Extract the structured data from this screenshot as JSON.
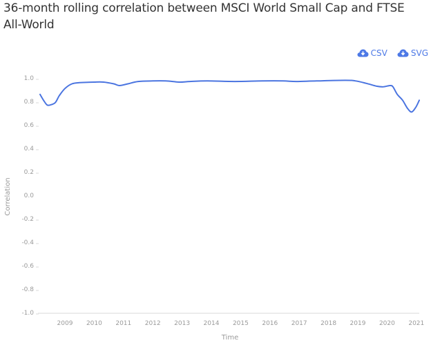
{
  "chart_data": {
    "type": "line",
    "title": "36-month rolling correlation between MSCI World Small Cap and FTSE All-World",
    "xlabel": "Time",
    "ylabel": "Correlation",
    "ylim": [
      -1.0,
      1.0
    ],
    "xlim": [
      2008.15,
      2021.1
    ],
    "grid": false,
    "legend": "none",
    "y_ticks": [
      "1.0",
      "0.8",
      "0.6",
      "0.4",
      "0.2",
      "0.0",
      "-0.2",
      "-0.4",
      "-0.6",
      "-0.8",
      "-1.0"
    ],
    "y_tick_values": [
      1.0,
      0.8,
      0.6,
      0.4,
      0.2,
      0.0,
      -0.2,
      -0.4,
      -0.6,
      -0.8,
      -1.0
    ],
    "x_ticks": [
      "2009",
      "2010",
      "2011",
      "2012",
      "2013",
      "2014",
      "2015",
      "2016",
      "2017",
      "2018",
      "2019",
      "2020",
      "2021"
    ],
    "x_tick_values": [
      2009,
      2010,
      2011,
      2012,
      2013,
      2014,
      2015,
      2016,
      2017,
      2018,
      2019,
      2020,
      2021
    ],
    "series": [
      {
        "name": "Correlation",
        "color": "#4a74e0",
        "x": [
          2008.15,
          2008.27,
          2008.39,
          2008.5,
          2008.67,
          2008.81,
          2009.0,
          2009.24,
          2009.5,
          2010.0,
          2010.32,
          2010.67,
          2010.86,
          2011.15,
          2011.5,
          2012.0,
          2012.44,
          2012.9,
          2013.27,
          2013.86,
          2014.8,
          2015.75,
          2016.45,
          2016.9,
          2017.6,
          2018.57,
          2018.93,
          2019.28,
          2019.64,
          2019.87,
          2020.1,
          2020.2,
          2020.35,
          2020.53,
          2020.7,
          2020.84,
          2020.98,
          2021.1
        ],
        "values": [
          0.86,
          0.81,
          0.77,
          0.77,
          0.79,
          0.85,
          0.91,
          0.95,
          0.96,
          0.965,
          0.965,
          0.95,
          0.935,
          0.95,
          0.97,
          0.975,
          0.975,
          0.965,
          0.97,
          0.975,
          0.97,
          0.975,
          0.975,
          0.97,
          0.975,
          0.98,
          0.975,
          0.955,
          0.93,
          0.925,
          0.935,
          0.925,
          0.86,
          0.81,
          0.74,
          0.71,
          0.75,
          0.81
        ]
      }
    ]
  },
  "export": {
    "csv_label": "CSV",
    "svg_label": "SVG",
    "icon": "cloud-download-icon",
    "color": "#4d79e6"
  },
  "colors": {
    "axis": "#e6e6e6",
    "tick_text": "#9a9a9a",
    "title_text": "#333333"
  }
}
